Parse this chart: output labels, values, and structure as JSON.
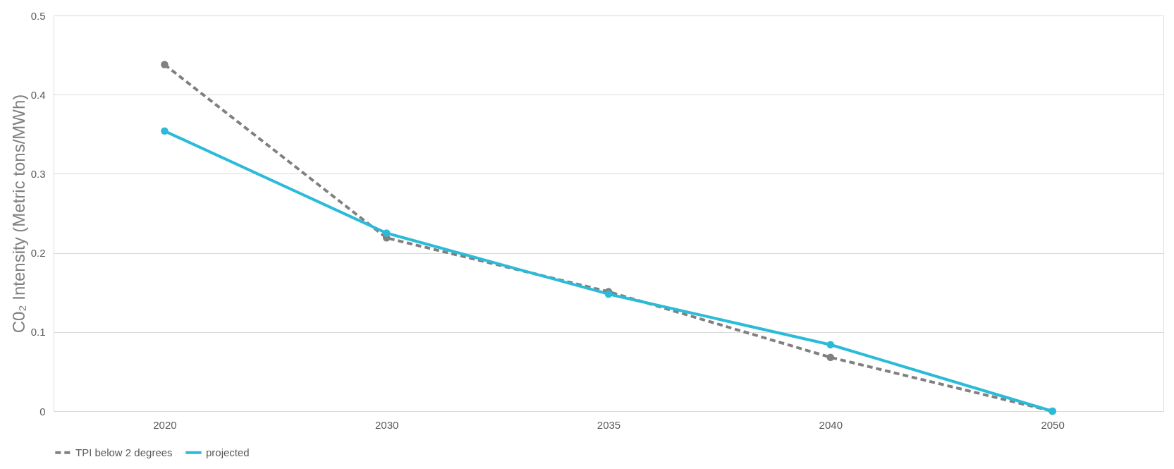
{
  "chart_data": {
    "type": "line",
    "ylabel": "C0₂ Intensity (Metric tons/MWh)",
    "categories": [
      "2020",
      "2030",
      "2035",
      "2040",
      "2050"
    ],
    "series": [
      {
        "name": "TPI below 2 degrees",
        "color": "#808080",
        "line_style": "dashed",
        "values": [
          0.438,
          0.219,
          0.151,
          0.068,
          0.0
        ]
      },
      {
        "name": "projected",
        "color": "#2bbbd8",
        "line_style": "solid",
        "values": [
          0.354,
          0.225,
          0.148,
          0.084,
          0.0
        ]
      }
    ],
    "ylim": [
      0,
      0.5
    ],
    "yticks": [
      0,
      0.1,
      0.2,
      0.3,
      0.4,
      0.5
    ],
    "grid": "y",
    "legend": "bottom",
    "marker": "circle"
  }
}
